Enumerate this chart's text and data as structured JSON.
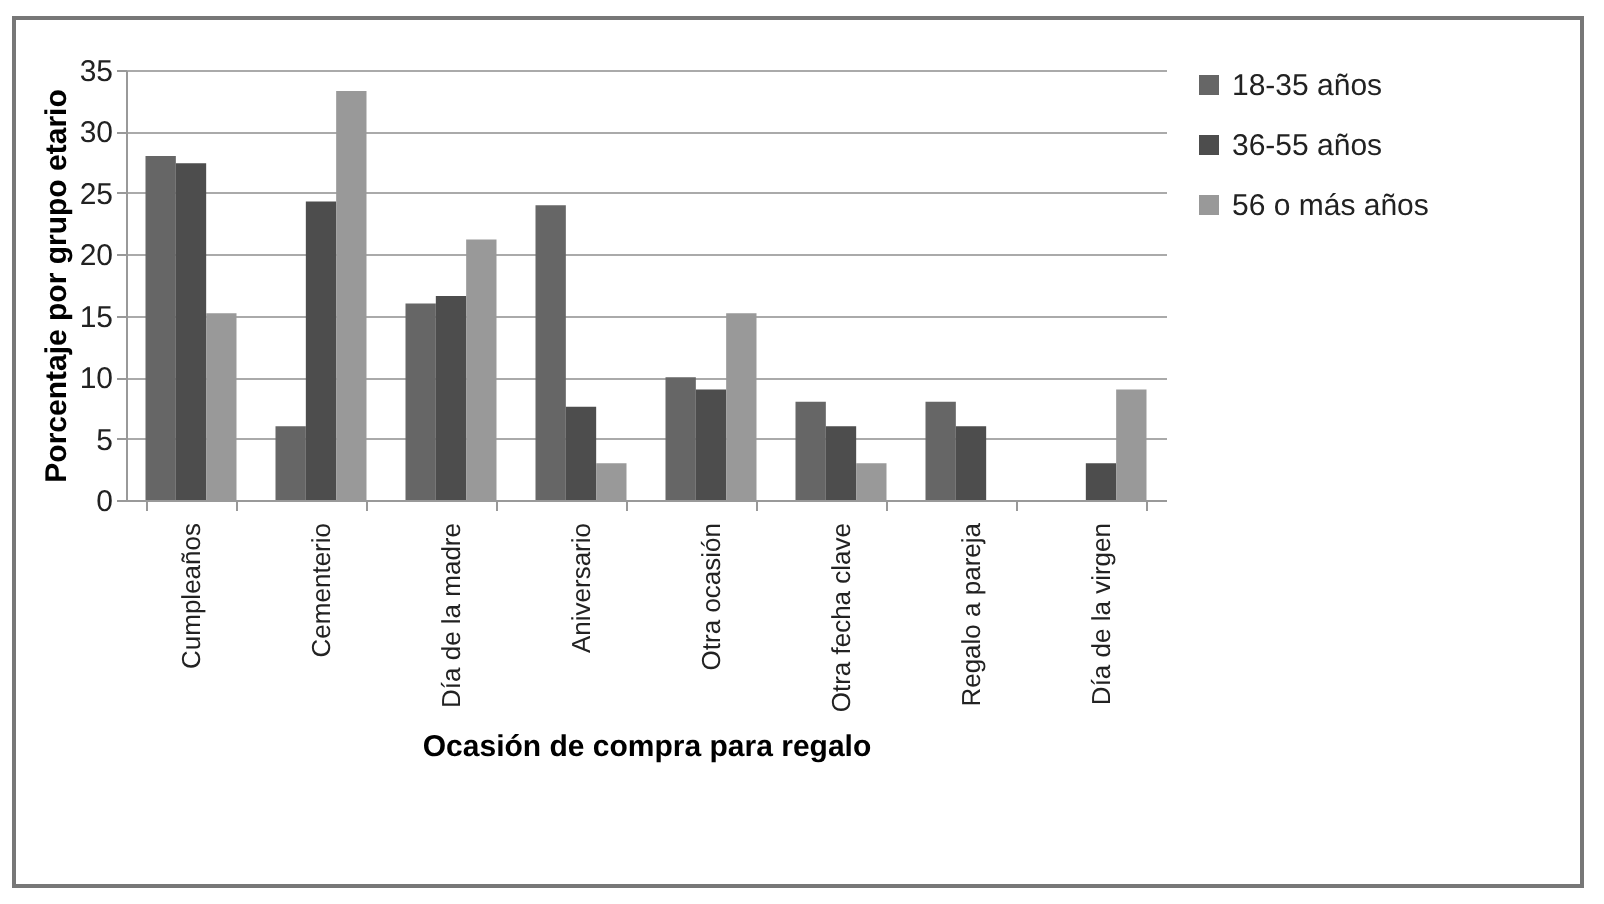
{
  "chart_data": {
    "type": "bar",
    "xlabel": "Ocasión de compra para regalo",
    "ylabel": "Porcentaje por grupo etario",
    "categories": [
      "Cumpleaños",
      "Cementerio",
      "Día de la madre",
      "Aniversario",
      "Otra ocasión",
      "Otra fecha clave",
      "Regalo a pareja",
      "Día de la virgen"
    ],
    "series": [
      {
        "name": "18-35 años",
        "color": "#666666",
        "values": [
          28,
          6,
          16,
          24,
          10,
          8,
          8,
          0
        ]
      },
      {
        "name": "36-55 años",
        "color": "#4d4d4d",
        "values": [
          27.4,
          24.3,
          16.6,
          7.6,
          9,
          6,
          6,
          3
        ]
      },
      {
        "name": "56 o más años",
        "color": "#999999",
        "values": [
          15.2,
          33.3,
          21.2,
          3,
          15.2,
          3,
          0,
          9
        ]
      }
    ],
    "ylim": [
      0,
      35
    ],
    "yticks": [
      0,
      5,
      10,
      15,
      20,
      25,
      30,
      35
    ],
    "grid": "y",
    "legend": "right"
  }
}
